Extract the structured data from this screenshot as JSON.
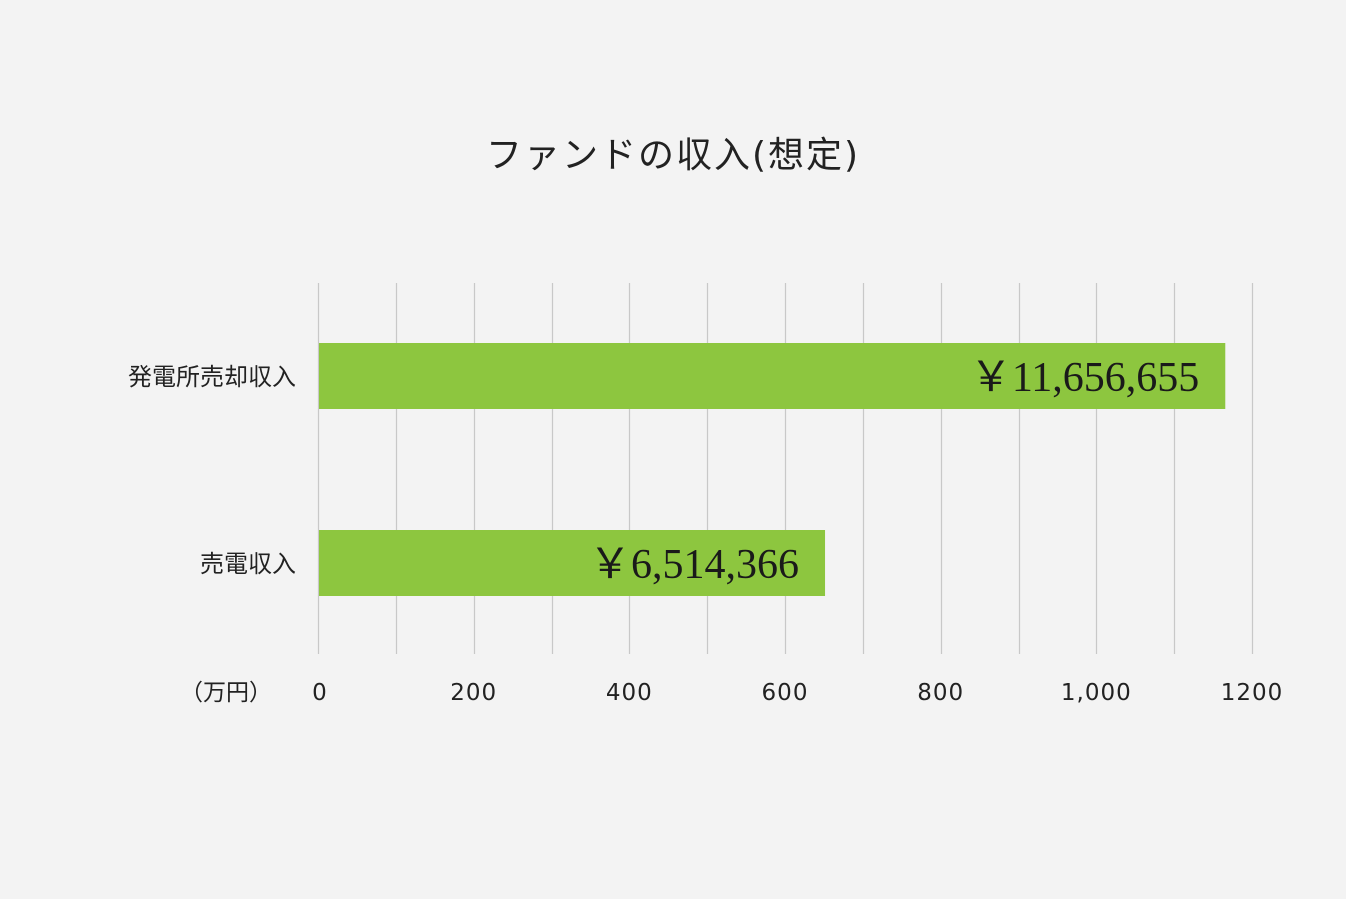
{
  "chart_data": {
    "type": "bar",
    "orientation": "horizontal",
    "title": "ファンドの収入(想定)",
    "unit_label": "（万円）",
    "categories": [
      "発電所売却収入",
      "売電収入"
    ],
    "values": [
      1165.6655,
      651.4366
    ],
    "data_labels": [
      "￥11,656,655",
      "￥6,514,366"
    ],
    "xlim": [
      0,
      1200
    ],
    "x_ticks": [
      {
        "value": 0,
        "label": "0"
      },
      {
        "value": 200,
        "label": "200"
      },
      {
        "value": 400,
        "label": "400"
      },
      {
        "value": 600,
        "label": "600"
      },
      {
        "value": 800,
        "label": "800"
      },
      {
        "value": 1000,
        "label": "1,000"
      },
      {
        "value": 1200,
        "label": "1200"
      }
    ],
    "gridline_step": 100,
    "grid": true,
    "legend": "none",
    "colors": {
      "bar": "#8dc63f",
      "grid": "#c8c8c8",
      "background": "#f3f3f3"
    }
  }
}
